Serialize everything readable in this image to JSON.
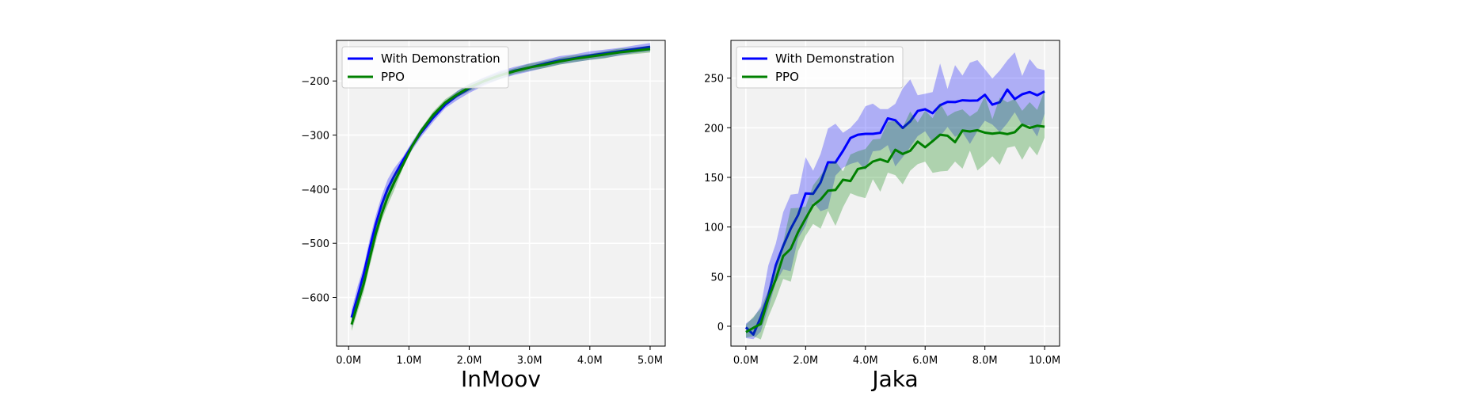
{
  "colors": {
    "with_demonstration": "#0000ff",
    "ppo": "#008000",
    "plot_background": "#f2f2f2",
    "grid": "#ffffff"
  },
  "chart_data": [
    {
      "type": "line",
      "title": "InMoov",
      "xlabel": "",
      "ylabel": "",
      "xlim": [
        -0.2,
        5.25
      ],
      "ylim": [
        -690,
        -125
      ],
      "x_ticks": [
        0,
        1,
        2,
        3,
        4,
        5
      ],
      "x_tick_labels": [
        "0.0M",
        "1.0M",
        "2.0M",
        "3.0M",
        "4.0M",
        "5.0M"
      ],
      "y_ticks": [
        -600,
        -500,
        -400,
        -300,
        -200
      ],
      "y_tick_labels": [
        "−600",
        "−500",
        "−400",
        "−300",
        "−200"
      ],
      "grid": true,
      "legend": "upper-left",
      "x": [
        0.05,
        0.15,
        0.25,
        0.35,
        0.45,
        0.55,
        0.65,
        0.75,
        0.9,
        1.05,
        1.2,
        1.4,
        1.6,
        1.8,
        2.0,
        2.25,
        2.5,
        2.75,
        3.0,
        3.25,
        3.5,
        3.75,
        4.0,
        4.25,
        4.5,
        4.75,
        5.0
      ],
      "series": [
        {
          "name": "With Demonstration",
          "color": "#0000ff",
          "values": [
            -637,
            -598,
            -557,
            -509,
            -465,
            -428,
            -399,
            -377,
            -347,
            -320,
            -296,
            -268,
            -244,
            -227,
            -214,
            -200,
            -190,
            -181,
            -175,
            -168,
            -162,
            -158,
            -153,
            -149,
            -145,
            -141,
            -137
          ],
          "band": 12
        },
        {
          "name": "PPO",
          "color": "#008000",
          "values": [
            -650,
            -612,
            -575,
            -528,
            -482,
            -445,
            -414,
            -389,
            -355,
            -321,
            -293,
            -263,
            -240,
            -225,
            -212,
            -200,
            -190,
            -182,
            -175,
            -170,
            -164,
            -159,
            -155,
            -151,
            -147,
            -144,
            -141
          ],
          "band": 10
        }
      ]
    },
    {
      "type": "line",
      "title": "Jaka",
      "xlabel": "",
      "ylabel": "",
      "xlim": [
        -0.5,
        10.5
      ],
      "ylim": [
        -20,
        288
      ],
      "x_ticks": [
        0,
        2,
        4,
        6,
        8,
        10
      ],
      "x_tick_labels": [
        "0.0M",
        "2.0M",
        "4.0M",
        "6.0M",
        "8.0M",
        "10.0M"
      ],
      "y_ticks": [
        0,
        50,
        100,
        150,
        200,
        250
      ],
      "y_tick_labels": [
        "0",
        "50",
        "100",
        "150",
        "200",
        "250"
      ],
      "grid": true,
      "legend": "upper-left",
      "x": [
        0,
        0.25,
        0.5,
        0.75,
        1.0,
        1.25,
        1.5,
        1.75,
        2.0,
        2.25,
        2.5,
        2.75,
        3.0,
        3.25,
        3.5,
        3.75,
        4.0,
        4.25,
        4.5,
        4.75,
        5.0,
        5.25,
        5.5,
        5.75,
        6.0,
        6.25,
        6.5,
        6.75,
        7.0,
        7.25,
        7.5,
        7.75,
        8.0,
        8.25,
        8.5,
        8.75,
        9.0,
        9.25,
        9.5,
        9.75,
        10.0
      ],
      "series": [
        {
          "name": "With Demonstration",
          "color": "#0000ff",
          "values": [
            -3,
            -2,
            8,
            35,
            58,
            78,
            97,
            115,
            130,
            140,
            150,
            162,
            170,
            176,
            183,
            187,
            192,
            196,
            199,
            203,
            205,
            206,
            210,
            212,
            214,
            218,
            220,
            222,
            224,
            226,
            228,
            228,
            229,
            230,
            231,
            232,
            233,
            233,
            234,
            234,
            232
          ],
          "band": 30
        },
        {
          "name": "PPO",
          "color": "#008000",
          "values": [
            -3,
            -3,
            5,
            28,
            50,
            68,
            82,
            96,
            108,
            117,
            125,
            132,
            138,
            143,
            150,
            155,
            160,
            164,
            168,
            171,
            174,
            177,
            180,
            182,
            185,
            186,
            188,
            189,
            190,
            192,
            193,
            194,
            195,
            196,
            197,
            197,
            198,
            198,
            199,
            200,
            205
          ],
          "band": 25
        }
      ]
    }
  ]
}
